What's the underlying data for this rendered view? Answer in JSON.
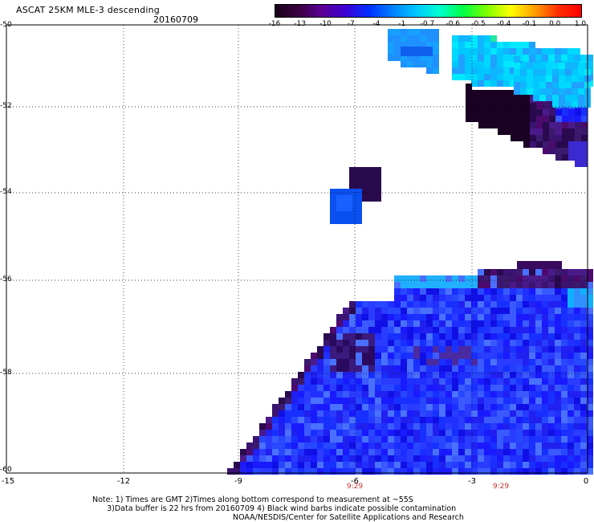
{
  "title": "ASCAT 25KM MLE-3 descending",
  "date": "20160709",
  "colorbar": {
    "labels": [
      "-16",
      "-13",
      "-10",
      "-7",
      "-4",
      "-1",
      "-0.7",
      "-0.6",
      "-0.5",
      "-0.4",
      "-0.1",
      "0.0",
      "1.0"
    ],
    "colors": [
      "#1a0018",
      "#3a0040",
      "#5a0096",
      "#3c00d2",
      "#0030ff",
      "#0080ff",
      "#00c8ff",
      "#00ffd0",
      "#00ff40",
      "#80ff00",
      "#ffff00",
      "#ffa000",
      "#ff3000",
      "#ff0000"
    ]
  },
  "map": {
    "lon_ticks": [
      "-15",
      "-12",
      "-9",
      "-6",
      "-3",
      "0"
    ],
    "lat_ticks": [
      "-50",
      "-52",
      "-54",
      "-56",
      "-58",
      "-60"
    ],
    "time_labels": [
      {
        "label": "9:29",
        "lon": -6
      },
      {
        "label": "9:29",
        "lon": -2.3
      }
    ]
  },
  "note_lines": [
    "Note: 1) Times are GMT 2)Times along bottom correspond to measurement at ~55S",
    "      3)Data buffer is 22 hrs from 20160709 4) Black wind barbs indicate possible contamination"
  ],
  "footer": "NOAA/NESDIS/Center for Satellite Applications and Research"
}
